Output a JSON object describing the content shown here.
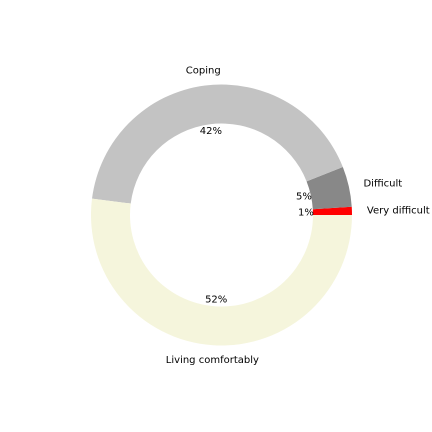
{
  "chart_data": {
    "type": "pie",
    "variant": "donut",
    "legend": "none",
    "slices": [
      {
        "label": "Very difficult",
        "value": 1,
        "percent_label": "1%",
        "color": "#ff0000"
      },
      {
        "label": "Difficult",
        "value": 5,
        "percent_label": "5%",
        "color": "#888888"
      },
      {
        "label": "Coping",
        "value": 42,
        "percent_label": "42%",
        "color": "#c3c3c3"
      },
      {
        "label": "Living comfortably",
        "value": 52,
        "percent_label": "52%",
        "color": "#f5f5dc"
      }
    ]
  }
}
